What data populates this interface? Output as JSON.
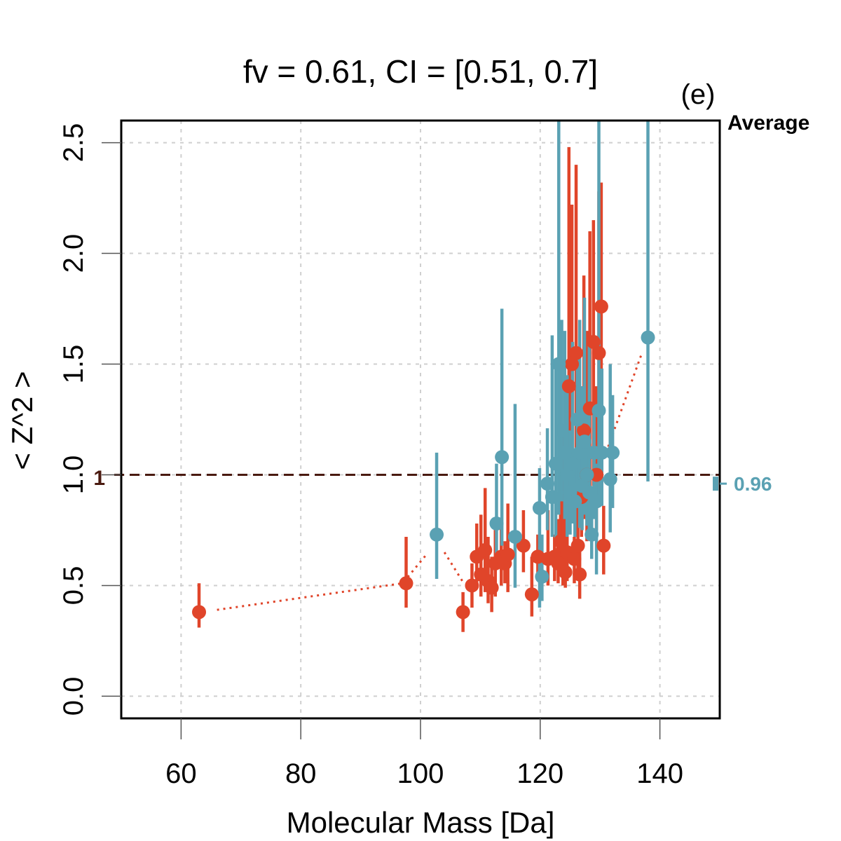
{
  "chart_data": {
    "type": "scatter",
    "title": "fv = 0.61, CI = [0.51, 0.7]",
    "panel_label": "(e)",
    "xlabel": "Molecular Mass [Da]",
    "ylabel": "< Z^2 >",
    "xlim": [
      50,
      150
    ],
    "ylim": [
      -0.1,
      2.6
    ],
    "x_ticks": [
      60,
      80,
      100,
      120,
      140
    ],
    "y_ticks": [
      0.0,
      0.5,
      1.0,
      1.5,
      2.0,
      2.5
    ],
    "x_tick_labels": [
      "60",
      "80",
      "100",
      "120",
      "140"
    ],
    "y_tick_labels": [
      "0.0",
      "0.5",
      "1.0",
      "1.5",
      "2.0",
      "2.5"
    ],
    "grid": true,
    "reference_line": {
      "y": 1.0,
      "label": "1",
      "color": "#4a1a10"
    },
    "average_panel": {
      "title": "Average",
      "entries": [
        {
          "value": 0.96,
          "label": "0.96",
          "color": "#5aa1b3"
        }
      ]
    },
    "colors": {
      "red": "#e0452a",
      "blue": "#5aa1b3"
    },
    "series": [
      {
        "color_key": "red",
        "trend": [
          [
            66,
            0.39
          ],
          [
            97,
            0.51
          ],
          [
            101,
            0.64
          ]
        ],
        "trend2": [
          [
            104,
            0.65
          ],
          [
            107,
            0.52
          ]
        ],
        "trend3": [
          [
            131,
            1.1
          ],
          [
            137,
            1.55
          ]
        ],
        "points": [
          [
            63.0,
            0.38,
            0.31,
            0.51
          ],
          [
            97.6,
            0.51,
            0.4,
            0.72
          ],
          [
            107.1,
            0.38,
            0.29,
            0.47
          ],
          [
            108.6,
            0.5,
            0.4,
            0.6
          ],
          [
            109.4,
            0.63,
            0.5,
            0.78
          ],
          [
            110.1,
            0.55,
            0.45,
            0.82
          ],
          [
            110.8,
            0.66,
            0.47,
            0.94
          ],
          [
            111.3,
            0.52,
            0.42,
            0.72
          ],
          [
            111.9,
            0.49,
            0.38,
            0.63
          ],
          [
            112.5,
            0.6,
            0.45,
            0.8
          ],
          [
            113.5,
            0.63,
            0.5,
            0.76
          ],
          [
            114.1,
            0.6,
            0.51,
            0.7
          ],
          [
            114.6,
            0.64,
            0.47,
            0.87
          ],
          [
            117.2,
            0.68,
            0.56,
            0.84
          ],
          [
            118.6,
            0.46,
            0.36,
            0.63
          ],
          [
            119.6,
            0.63,
            0.55,
            0.73
          ],
          [
            121.3,
            0.62,
            0.5,
            0.84
          ],
          [
            122.4,
            0.63,
            0.52,
            0.73
          ],
          [
            123.0,
            0.6,
            0.51,
            0.8
          ],
          [
            123.4,
            0.7,
            0.56,
            0.92
          ],
          [
            123.8,
            0.66,
            0.5,
            1.2
          ],
          [
            124.2,
            0.56,
            0.49,
            0.9
          ],
          [
            124.5,
            0.65,
            0.52,
            0.98
          ],
          [
            124.8,
            1.4,
            0.8,
            2.48
          ],
          [
            125.3,
            1.5,
            0.85,
            2.22
          ],
          [
            125.7,
            0.62,
            0.51,
            0.72
          ],
          [
            126.0,
            1.55,
            0.8,
            2.4
          ],
          [
            126.3,
            0.68,
            0.55,
            0.86
          ],
          [
            126.6,
            0.55,
            0.44,
            0.68
          ],
          [
            126.9,
            0.9,
            0.72,
            1.4
          ],
          [
            127.3,
            1.2,
            0.8,
            1.9
          ],
          [
            127.8,
            1.0,
            0.7,
            1.65
          ],
          [
            128.3,
            1.3,
            0.9,
            2.1
          ],
          [
            128.9,
            1.6,
            0.95,
            2.15
          ],
          [
            129.4,
            1.0,
            0.75,
            1.4
          ],
          [
            129.8,
            1.55,
            1.0,
            2.28
          ],
          [
            130.2,
            1.76,
            1.05,
            2.32
          ],
          [
            130.6,
            0.68,
            0.55,
            0.86
          ]
        ]
      },
      {
        "color_key": "blue",
        "points": [
          [
            102.7,
            0.73,
            0.53,
            1.1
          ],
          [
            112.7,
            0.78,
            0.59,
            1.05
          ],
          [
            113.6,
            1.08,
            0.68,
            1.75
          ],
          [
            115.8,
            0.72,
            0.49,
            1.32
          ],
          [
            119.9,
            0.85,
            0.4,
            1.03
          ],
          [
            120.3,
            0.54,
            0.43,
            0.73
          ],
          [
            121.2,
            0.96,
            0.75,
            1.21
          ],
          [
            122.0,
            0.9,
            0.72,
            1.63
          ],
          [
            122.6,
            1.05,
            0.7,
            1.5
          ],
          [
            123.1,
            1.5,
            0.82,
            2.6
          ],
          [
            123.6,
            1.2,
            0.88,
            1.7
          ],
          [
            124.1,
            1.1,
            0.8,
            1.65
          ],
          [
            124.5,
            1.0,
            0.72,
            1.45
          ],
          [
            125.0,
            0.92,
            0.73,
            1.2
          ],
          [
            125.4,
            1.05,
            0.78,
            1.6
          ],
          [
            125.8,
            0.88,
            0.72,
            1.1
          ],
          [
            126.2,
            1.25,
            0.85,
            1.55
          ],
          [
            126.6,
            1.1,
            0.76,
            1.7
          ],
          [
            127.0,
            0.95,
            0.75,
            1.4
          ],
          [
            127.4,
            1.15,
            0.82,
            1.8
          ],
          [
            127.8,
            1.0,
            0.77,
            1.3
          ],
          [
            128.2,
            0.92,
            0.74,
            1.6
          ],
          [
            128.6,
            0.73,
            0.62,
            0.92
          ],
          [
            129.0,
            1.1,
            0.8,
            1.3
          ],
          [
            129.4,
            0.88,
            0.55,
            1.05
          ],
          [
            129.8,
            1.29,
            0.88,
            2.6
          ],
          [
            130.3,
            1.1,
            0.86,
            1.48
          ],
          [
            131.7,
            0.98,
            0.74,
            1.5
          ],
          [
            132.1,
            1.1,
            0.85,
            1.36
          ],
          [
            138.0,
            1.62,
            0.97,
            2.6
          ]
        ]
      }
    ]
  }
}
